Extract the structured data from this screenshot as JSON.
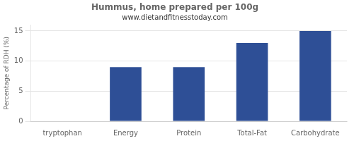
{
  "chart_data": {
    "type": "bar",
    "title": "Hummus, home prepared per 100g",
    "subtitle": "www.dietandfitnesstoday.com",
    "ylabel": "Percentage of RDH (%)",
    "categories": [
      "tryptophan",
      "Energy",
      "Protein",
      "Total-Fat",
      "Carbohydrate"
    ],
    "values": [
      0,
      9,
      9,
      13,
      15
    ],
    "color": "#2e4f96",
    "ylim": [
      0,
      16
    ],
    "yticks": [
      0,
      5,
      10,
      15
    ],
    "grid": true
  }
}
